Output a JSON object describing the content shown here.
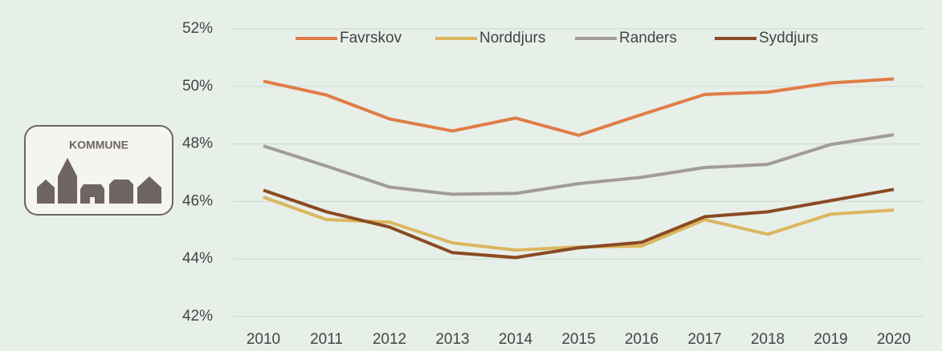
{
  "logo": {
    "label": "KOMMUNE"
  },
  "chart_data": {
    "type": "line",
    "categories": [
      "2010",
      "2011",
      "2012",
      "2013",
      "2014",
      "2015",
      "2016",
      "2017",
      "2018",
      "2019",
      "2020"
    ],
    "series": [
      {
        "name": "Favrskov",
        "color": "#e07d47",
        "values": [
          50.18,
          49.7,
          48.87,
          48.45,
          48.9,
          48.3,
          49.02,
          49.72,
          49.8,
          50.12,
          50.26
        ]
      },
      {
        "name": "Norddjurs",
        "color": "#dbb65e",
        "values": [
          46.15,
          45.37,
          45.28,
          44.56,
          44.31,
          44.42,
          44.45,
          45.37,
          44.86,
          45.56,
          45.7
        ]
      },
      {
        "name": "Randers",
        "color": "#a19b9b",
        "values": [
          47.93,
          47.23,
          46.5,
          46.25,
          46.28,
          46.62,
          46.84,
          47.18,
          47.29,
          47.98,
          48.32
        ]
      },
      {
        "name": "Syddjurs",
        "color": "#8a4a22",
        "values": [
          46.39,
          45.64,
          45.11,
          44.22,
          44.05,
          44.39,
          44.58,
          45.47,
          45.64,
          46.03,
          46.42
        ]
      }
    ],
    "ylim": [
      42,
      52
    ],
    "yticks": [
      {
        "value": 42,
        "label": "42%"
      },
      {
        "value": 44,
        "label": "44%"
      },
      {
        "value": 46,
        "label": "46%"
      },
      {
        "value": 48,
        "label": "48%"
      },
      {
        "value": 50,
        "label": "50%"
      },
      {
        "value": 52,
        "label": "52%"
      }
    ],
    "grid": true,
    "legend": "top"
  }
}
